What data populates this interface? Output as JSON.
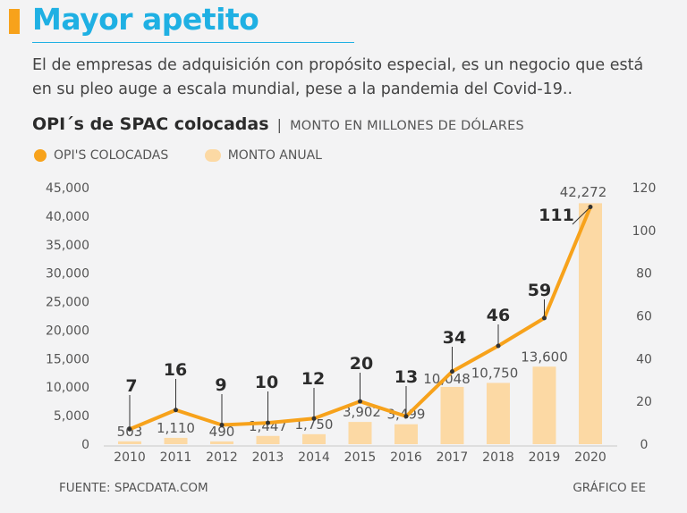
{
  "header": {
    "title": "Mayor apetito",
    "subtitle": "El de empresas de adquisición con propósito especial, es un negocio que está en su pleo auge a escala mundial, pese a la pandemia del Covid-19.."
  },
  "chart_heading": {
    "title": "OPI´s de SPAC colocadas",
    "separator": "|",
    "unit": "MONTO EN MILLONES DE DÓLARES"
  },
  "legend": {
    "line_label": "OPI'S COLOCADAS",
    "bar_label": "MONTO ANUAL"
  },
  "footer": {
    "source": "FUENTE: SPACDATA.COM",
    "credit": "GRÁFICO EE"
  },
  "colors": {
    "accent": "#f7a21b",
    "title_blue": "#1fb0e3",
    "bar": "#fcd9a4",
    "background": "#f3f3f4"
  },
  "chart_data": {
    "type": "bar+line",
    "categories": [
      "2010",
      "2011",
      "2012",
      "2013",
      "2014",
      "2015",
      "2016",
      "2017",
      "2018",
      "2019",
      "2020"
    ],
    "series": [
      {
        "name": "MONTO ANUAL",
        "type": "bar",
        "axis": "left",
        "values": [
          503,
          1110,
          490,
          1447,
          1750,
          3902,
          3499,
          10048,
          10750,
          13600,
          42272
        ],
        "labels": [
          "503",
          "1,110",
          "490",
          "1,447",
          "1,750",
          "3,902",
          "3,499",
          "10,048",
          "10,750",
          "13,600",
          "42,272"
        ]
      },
      {
        "name": "OPI'S COLOCADAS",
        "type": "line",
        "axis": "right",
        "values": [
          7,
          16,
          9,
          10,
          12,
          20,
          13,
          34,
          46,
          59,
          111
        ],
        "labels": [
          "7",
          "16",
          "9",
          "10",
          "12",
          "20",
          "13",
          "34",
          "46",
          "59",
          "111"
        ]
      }
    ],
    "left_axis": {
      "min": 0,
      "max": 45000,
      "ticks": [
        "0",
        "5,000",
        "10,000",
        "15,000",
        "20,000",
        "25,000",
        "30,000",
        "35,000",
        "40,000",
        "45,000"
      ]
    },
    "right_axis": {
      "min": 0,
      "max": 120,
      "ticks": [
        "0",
        "20",
        "40",
        "60",
        "80",
        "100",
        "120"
      ]
    },
    "grid": false,
    "legend_position": "top-left"
  }
}
